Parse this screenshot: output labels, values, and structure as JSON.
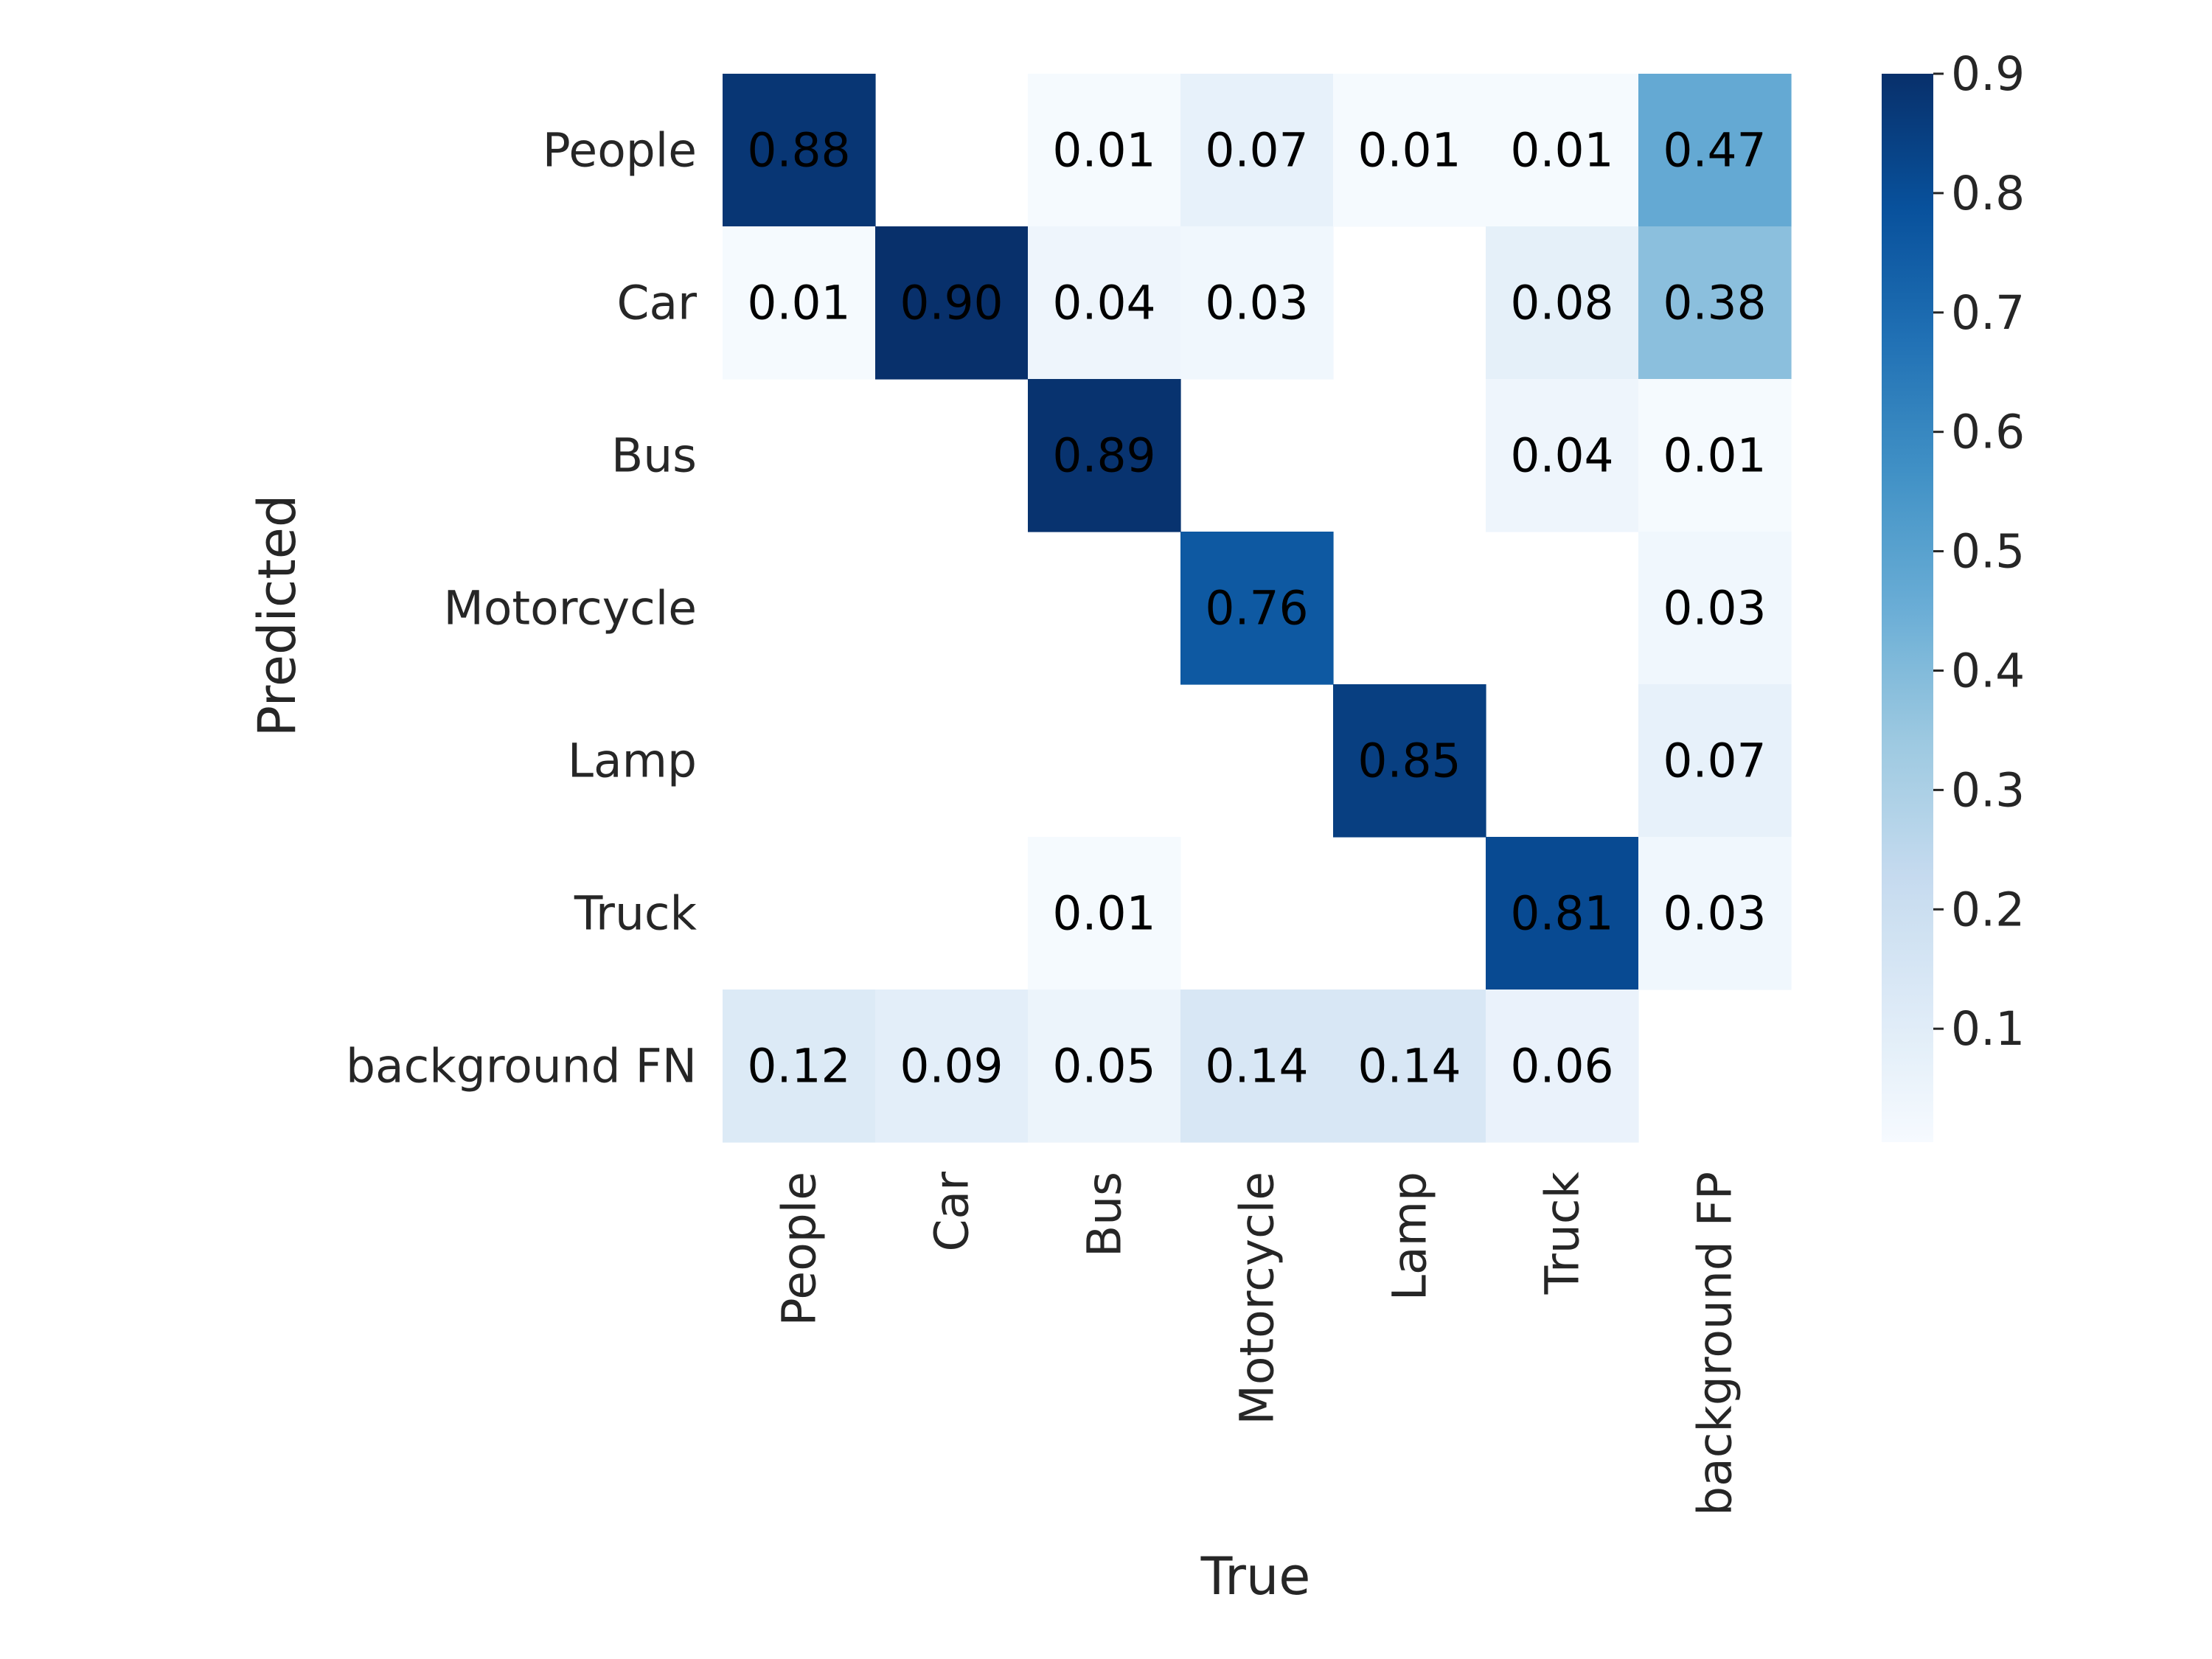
{
  "chart_data": {
    "type": "heatmap",
    "title": "",
    "xlabel": "True",
    "ylabel": "Predicted",
    "x_categories": [
      "People",
      "Car",
      "Bus",
      "Motorcycle",
      "Lamp",
      "Truck",
      "background FP"
    ],
    "y_categories": [
      "People",
      "Car",
      "Bus",
      "Motorcycle",
      "Lamp",
      "Truck",
      "background FN"
    ],
    "values": [
      [
        0.88,
        null,
        0.01,
        0.07,
        0.01,
        0.01,
        0.47
      ],
      [
        0.01,
        0.9,
        0.04,
        0.03,
        null,
        0.08,
        0.38
      ],
      [
        null,
        null,
        0.89,
        null,
        null,
        0.04,
        0.01
      ],
      [
        null,
        null,
        null,
        0.76,
        null,
        null,
        0.03
      ],
      [
        null,
        null,
        null,
        null,
        0.85,
        null,
        0.07
      ],
      [
        null,
        null,
        0.01,
        null,
        null,
        0.81,
        0.03
      ],
      [
        0.12,
        0.09,
        0.05,
        0.14,
        0.14,
        0.06,
        null
      ]
    ],
    "value_format": "0.00",
    "colormap": "Blues",
    "vmin": 0.0,
    "vmax": 0.9,
    "colorbar_ticks": [
      0.1,
      0.2,
      0.3,
      0.4,
      0.5,
      0.6,
      0.7,
      0.8,
      0.9
    ],
    "colorbar_tick_labels": [
      "0.1",
      "0.2",
      "0.3",
      "0.4",
      "0.5",
      "0.6",
      "0.7",
      "0.8",
      "0.9"
    ],
    "grid": false,
    "colorbar": "right"
  }
}
